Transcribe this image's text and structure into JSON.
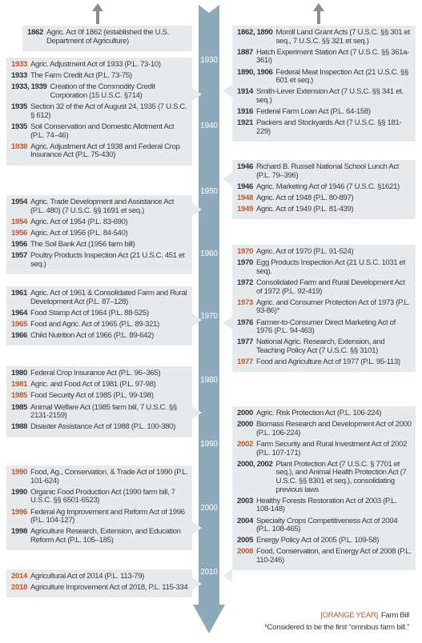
{
  "decades": [
    "1930",
    "1940",
    "1950",
    "1960",
    "1970",
    "1980",
    "1990",
    "2000",
    "2010"
  ],
  "left_boxes": [
    {
      "entries": [
        {
          "year": "1862",
          "text": "Agric. Act 0f 1862 (established the U.S. Department of Agriculture)",
          "farm_bill": false
        }
      ]
    },
    {
      "entries": [
        {
          "year": "1933",
          "text": "Agric. Adjustment Act of 1933 (P.L. 73-10)",
          "farm_bill": true
        },
        {
          "year": "1933",
          "text": "The Farm Credit Act (P.L. 73-75)",
          "farm_bill": false
        },
        {
          "year": "1933, 1939",
          "text": "Creation of the Commodity Credit Corporation (15 U.S.C. §714)",
          "farm_bill": false
        },
        {
          "year": "1935",
          "text": "Section 32 of the Act of August 24, 1935 (7 U.S.C. § 612)",
          "farm_bill": false
        },
        {
          "year": "1935",
          "text": "Soil Conservation and Domestic Allotment Act (P.L. 74–46)",
          "farm_bill": false
        },
        {
          "year": "1938",
          "text": "Agric. Adjustment Act of 1938 and Federal Crop Insurance Act (P.L. 75-430)",
          "farm_bill": true
        }
      ]
    },
    {
      "entries": [
        {
          "year": "1954",
          "text": "Agric. Trade Development and Assistance Act (P.L. 480) (7 U.S.C. §§ 1691 et seq.)",
          "farm_bill": false
        },
        {
          "year": "1954",
          "text": "Agric. Act of 1954 (P.L. 83-690)",
          "farm_bill": true
        },
        {
          "year": "1956",
          "text": "Agric. Act of 1956 (P.L. 84-540)",
          "farm_bill": true
        },
        {
          "year": "1956",
          "text": "The Soil Bank Act (1956 farm bill)",
          "farm_bill": false
        },
        {
          "year": "1957",
          "text": "Poultry Products Inspection Act (21 U.S.C. 451 et seq.)",
          "farm_bill": false
        }
      ]
    },
    {
      "entries": [
        {
          "year": "1961",
          "text": "Agric. Act of 1961 & Consolidated Farm and Rural Development Act (P.L. 87–128)",
          "farm_bill": false
        },
        {
          "year": "1964",
          "text": "Food Stamp Act of 1964 (P.L. 88-525)",
          "farm_bill": false
        },
        {
          "year": "1965",
          "text": "Food and Agric. Act of 1965 (P.L. 89-321)",
          "farm_bill": true
        },
        {
          "year": "1966",
          "text": "Child Nutrition Act of 1966 (P.L. 89-642)",
          "farm_bill": false
        }
      ]
    },
    {
      "entries": [
        {
          "year": "1980",
          "text": "Federal Crop Insurance Act (P.L. 96–365)",
          "farm_bill": false
        },
        {
          "year": "1981",
          "text": "Agric. and Food Act of 1981 (P.L. 97-98)",
          "farm_bill": true
        },
        {
          "year": "1985",
          "text": "Food Security Act of 1985 (P.L. 99-198)",
          "farm_bill": true
        },
        {
          "year": "1985",
          "text": "Animal Welfare Act (1985 farm bill, 7 U.S.C. §§ 2131-2159)",
          "farm_bill": false
        },
        {
          "year": "1988",
          "text": "Disaster Assistance Act of 1988 (P.L. 100-380)",
          "farm_bill": false
        }
      ]
    },
    {
      "entries": [
        {
          "year": "1990",
          "text": "Food, Ag., Conservation, & Trade Act of 1990 (P.L. 101-624)",
          "farm_bill": true
        },
        {
          "year": "1990",
          "text": "Organic Food Production Act (1990 farm bill, 7 U.S.C. §§ 6501-6523)",
          "farm_bill": false
        },
        {
          "year": "1996",
          "text": "Federal Ag Improvement and Reform Act of 1996 (P.L. 104-127)",
          "farm_bill": true
        },
        {
          "year": "1998",
          "text": "Agriculture Research, Extension, and Education Reform Act (P.L. 105–185)",
          "farm_bill": false
        }
      ]
    },
    {
      "entries": [
        {
          "year": "2014",
          "text": "Agricultural Act of 2014 (P.L. 113-79)",
          "farm_bill": true
        },
        {
          "year": "2018",
          "text": "Agriculture Improvement Act of 2018, P.L. 115-334",
          "farm_bill": true
        }
      ]
    }
  ],
  "right_boxes": [
    {
      "entries": [
        {
          "year": "1862, 1890",
          "text": "Morrill Land Grant Acts (7 U.S.C. §§ 301 et seq., 7 U.S.C. §§ 321 et seq.)",
          "farm_bill": false
        },
        {
          "year": "1887",
          "text": "Hatch Experiment Station Act (7 U.S.C. §§ 361a-361i)",
          "farm_bill": false
        },
        {
          "year": "1890, 1906",
          "text": "Federal Meat Inspection Act (21 U.S.C. §§ 601 et seq.)",
          "farm_bill": false
        },
        {
          "year": "1914",
          "text": "Smith-Lever Extension Act (7 U.S.C. §§ 341 et. seq.)",
          "farm_bill": false
        },
        {
          "year": "1916",
          "text": "Federal Farm Loan Act (P.L. 64-158)",
          "farm_bill": false
        },
        {
          "year": "1921",
          "text": "Packers and Stockyards Act (7 U.S.C. §§ 181-229)",
          "farm_bill": false
        }
      ]
    },
    {
      "entries": [
        {
          "year": "1946",
          "text": "Richard B. Russell National School Lunch Act (P.L. 79–396)",
          "farm_bill": false
        },
        {
          "year": "1946",
          "text": "Agric. Marketing Act of 1946 (7 U.S.C. §1621)",
          "farm_bill": false
        },
        {
          "year": "1948",
          "text": "Agric. Act of 1948 (P.L. 80-897)",
          "farm_bill": true
        },
        {
          "year": "1949",
          "text": "Agric. Act of 1949 (P.L. 81-439)",
          "farm_bill": true
        }
      ]
    },
    {
      "entries": [
        {
          "year": "1970",
          "text": "Agric. Act of 1970 (P.L. 91-524)",
          "farm_bill": true
        },
        {
          "year": "1970",
          "text": "Egg Products Inspection Act (21 U.S.C. 1031 et seq).",
          "farm_bill": false
        },
        {
          "year": "1972",
          "text": "Consolidated Farm and Rural Development Act of 1972 (P.L. 92-419)",
          "farm_bill": false
        },
        {
          "year": "1973",
          "text": "Agric. and Consumer Protection Act of 1973 (P.L. 93-86)*",
          "farm_bill": true
        },
        {
          "year": "1976",
          "text": "Farmer-to-Consumer Direct Marketing Act of 1976 (P.L. 94-463)",
          "farm_bill": false
        },
        {
          "year": "1977",
          "text": "National Agric. Research, Extension, and Teaching Policy Act (7 U.S.C. §§ 3101)",
          "farm_bill": false
        },
        {
          "year": "1977",
          "text": "Food and Agriculture Act of 1977 (P.L. 95-113)",
          "farm_bill": true
        }
      ]
    },
    {
      "entries": [
        {
          "year": "2000",
          "text": "Agric. Risk Protection Act (P.L. 106-224)",
          "farm_bill": false
        },
        {
          "year": "2000",
          "text": "Biomass Research and Development Act of 2000 (P.L. 106-224)",
          "farm_bill": false
        },
        {
          "year": "2002",
          "text": "Farm Security and Rural Investment Act of 2002 (P.L. 107-171)",
          "farm_bill": true
        },
        {
          "year": "2000, 2002",
          "text": "Plant Protection Act (7 U.S.C. § 7701 et seq.), and Animal Health Protection Act (7 U.S.C. §§ 8301 et seq.), consolidating previous laws",
          "farm_bill": false
        },
        {
          "year": "2003",
          "text": "Healthy Forests Restoration Act of 2003 (P.L. 108-148)",
          "farm_bill": false
        },
        {
          "year": "2004",
          "text": "Specialty Crops Competitiveness Act of 2004 (P.L. 108-465)",
          "farm_bill": false
        },
        {
          "year": "2005",
          "text": "Energy Policy Act of 2005 (P.L. 109-58)",
          "farm_bill": false
        },
        {
          "year": "2008",
          "text": "Food, Conservation, and Energy Act of 2008 (P.L. 110-246)",
          "farm_bill": true
        }
      ]
    }
  ],
  "legend": {
    "key": "[ORANGE YEAR]",
    "label": "Farm Bill"
  },
  "footnote": "*Considered to be the first “omnibus farm bill.”"
}
